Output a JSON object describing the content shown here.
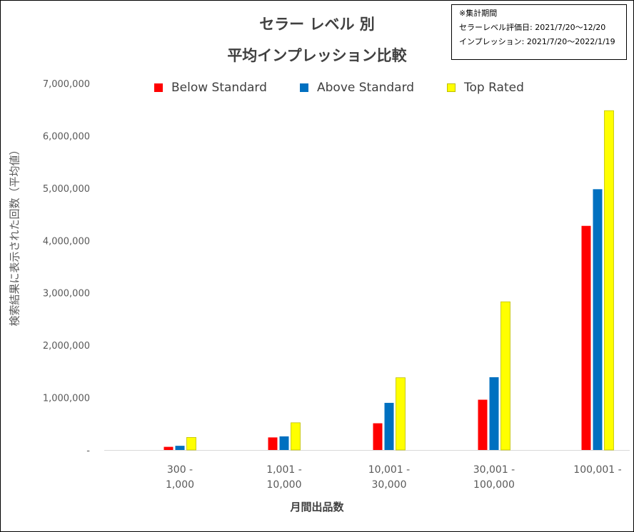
{
  "title_line1": "セラー レベル 別",
  "title_line2": "平均インプレッション比較",
  "note": {
    "heading": "※集計期間",
    "line1": "セラーレベル評価日: 2021/7/20～12/20",
    "line2": "インプレッション: 2021/7/20～2022/1/19"
  },
  "chart_data": {
    "type": "bar",
    "title": "セラー レベル 別 平均インプレッション比較",
    "xlabel": "月間出品数",
    "ylabel": "検索結果に表示された回数（平均値）",
    "categories": [
      [
        "300 -",
        "1,000"
      ],
      [
        "1,001 -",
        "10,000"
      ],
      [
        "10,001 -",
        "30,000"
      ],
      [
        "30,001 -",
        "100,000"
      ],
      [
        "100,001 -"
      ]
    ],
    "series": [
      {
        "name": "Below Standard",
        "color": "#FF0000",
        "values": [
          60000,
          240000,
          510000,
          960000,
          4280000
        ]
      },
      {
        "name": "Above Standard",
        "color": "#0070C0",
        "values": [
          80000,
          260000,
          900000,
          1390000,
          4980000
        ]
      },
      {
        "name": "Top Rated",
        "color": "#FFFF00",
        "values": [
          240000,
          520000,
          1380000,
          2830000,
          6480000
        ]
      }
    ],
    "ylim": [
      0,
      7000000
    ],
    "yticks": [
      {
        "value": 0,
        "label": "-"
      },
      {
        "value": 1000000,
        "label": "1,000,000"
      },
      {
        "value": 2000000,
        "label": "2,000,000"
      },
      {
        "value": 3000000,
        "label": "3,000,000"
      },
      {
        "value": 4000000,
        "label": "4,000,000"
      },
      {
        "value": 5000000,
        "label": "5,000,000"
      },
      {
        "value": 6000000,
        "label": "6,000,000"
      },
      {
        "value": 7000000,
        "label": "7,000,000"
      }
    ],
    "grid": false,
    "legend_position": "top"
  }
}
